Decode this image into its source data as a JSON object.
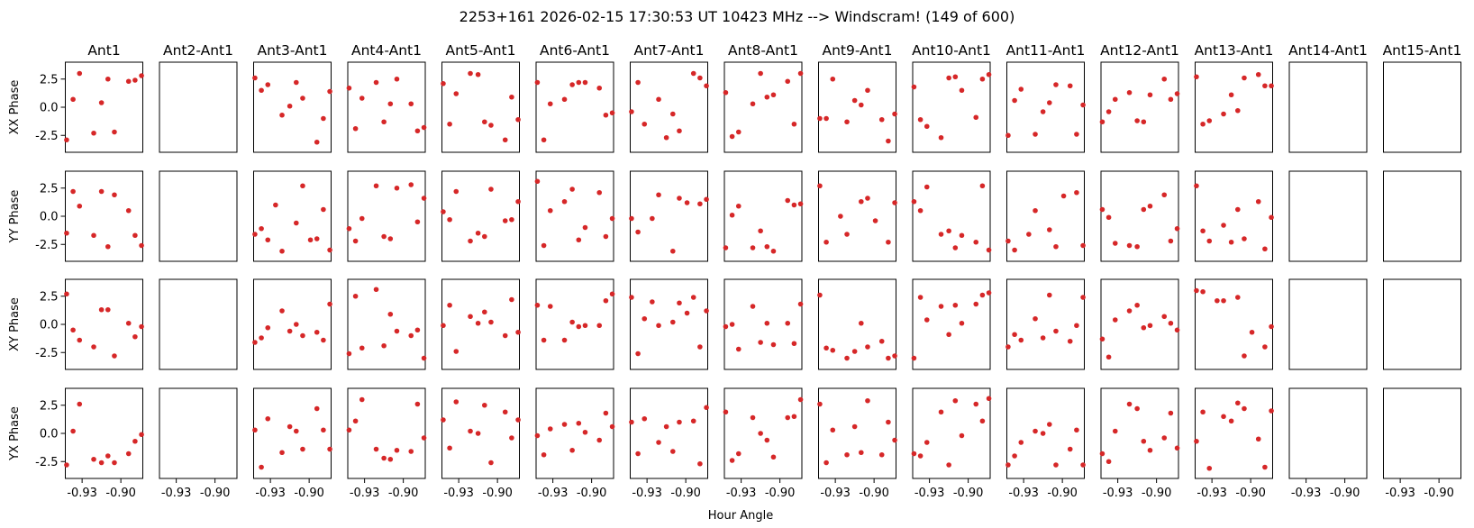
{
  "chart_data": {
    "type": "scatter",
    "title": "2253+161  2026-02-15 17:30:53 UT  10423 MHz  --> Windscram! (149 of 600)",
    "xlabel": "Hour Angle",
    "xlim": [
      -0.943,
      -0.883
    ],
    "ylim": [
      -4.0,
      4.0
    ],
    "x_ticks": [
      -0.93,
      -0.9
    ],
    "x_tick_labels": [
      "-0.93",
      "-0.90"
    ],
    "y_ticks": [
      2.5,
      0.0,
      -2.5
    ],
    "y_tick_labels": [
      "2.5",
      "0.0",
      "-2.5"
    ],
    "grid": false,
    "marker_color": "#d62728",
    "columns": [
      "Ant1",
      "Ant2-Ant1",
      "Ant3-Ant1",
      "Ant4-Ant1",
      "Ant5-Ant1",
      "Ant6-Ant1",
      "Ant7-Ant1",
      "Ant8-Ant1",
      "Ant9-Ant1",
      "Ant10-Ant1",
      "Ant11-Ant1",
      "Ant12-Ant1",
      "Ant13-Ant1",
      "Ant14-Ant1",
      "Ant15-Ant1"
    ],
    "rows": [
      "XX Phase",
      "YY Phase",
      "XY Phase",
      "YX Phase"
    ],
    "x": [
      -0.942,
      -0.937,
      -0.932,
      -0.926,
      -0.921,
      -0.915,
      -0.91,
      -0.905,
      -0.899,
      -0.894,
      -0.889,
      -0.884
    ],
    "phases": [
      [
        [
          -2.9,
          0.7,
          3.0,
          -2.3,
          0.4,
          2.5,
          -2.2,
          2.3,
          2.4,
          2.8
        ],
        [],
        [
          2.6,
          1.5,
          2.0,
          -0.7,
          0.1,
          2.2,
          0.8,
          -3.1,
          -1.0,
          1.4
        ],
        [
          1.7,
          -1.9,
          0.8,
          2.2,
          -1.3,
          0.3,
          2.5,
          0.3,
          -2.1,
          -1.8
        ],
        [
          2.1,
          -1.5,
          1.2,
          3.0,
          2.9,
          -1.3,
          -1.6,
          -2.9,
          0.9,
          -1.1
        ],
        [
          2.2,
          -2.9,
          0.3,
          0.7,
          2.0,
          2.2,
          2.2,
          1.7,
          -0.7,
          -0.5
        ],
        [
          -0.4,
          2.2,
          -1.5,
          0.7,
          -2.7,
          -0.6,
          -2.1,
          3.0,
          2.6,
          1.9
        ],
        [
          1.3,
          -2.6,
          -2.2,
          0.3,
          3.0,
          0.9,
          1.1,
          2.3,
          -1.5,
          3.0
        ],
        [
          -1.0,
          -1.0,
          2.5,
          -1.3,
          0.6,
          0.2,
          1.5,
          -1.1,
          -3.0,
          -0.6
        ],
        [
          1.8,
          -1.1,
          -1.7,
          -2.7,
          2.6,
          2.7,
          1.5,
          -0.9,
          2.5,
          2.9
        ],
        [
          -2.5,
          0.6,
          1.6,
          -2.4,
          -0.4,
          0.4,
          2.0,
          1.9,
          -2.4,
          0.2
        ],
        [
          -1.3,
          -0.4,
          0.7,
          1.3,
          -1.2,
          -1.3,
          1.1,
          2.5,
          0.7,
          1.2
        ],
        [
          2.7,
          -1.5,
          -1.2,
          -0.6,
          1.1,
          -0.3,
          2.6,
          2.9,
          1.9,
          1.9
        ],
        [],
        []
      ],
      [
        [
          -1.5,
          2.2,
          0.9,
          -1.7,
          2.2,
          -2.7,
          1.9,
          0.5,
          -1.7,
          -2.6
        ],
        [],
        [
          -1.6,
          -1.1,
          -2.1,
          1.0,
          -3.1,
          -0.6,
          2.7,
          -2.1,
          -2.0,
          0.6,
          -3.0
        ],
        [
          -1.1,
          -2.2,
          -0.2,
          2.7,
          -1.8,
          -2.0,
          2.5,
          2.8,
          -0.5,
          1.6
        ],
        [
          0.4,
          -0.3,
          2.2,
          -2.2,
          -1.5,
          -1.8,
          2.4,
          -0.4,
          -0.3,
          1.3
        ],
        [
          3.1,
          -2.6,
          0.5,
          1.3,
          2.4,
          -2.1,
          -1.0,
          2.1,
          -1.8,
          -0.2
        ],
        [
          -0.2,
          -1.4,
          -0.2,
          1.9,
          -3.1,
          1.6,
          1.2,
          1.1,
          1.5
        ],
        [
          -2.8,
          0.1,
          0.9,
          -2.8,
          -1.3,
          -2.7,
          -3.1,
          1.4,
          1.0,
          1.1
        ],
        [
          2.7,
          -2.3,
          0.0,
          -1.6,
          1.3,
          1.6,
          -0.4,
          -2.3,
          1.2
        ],
        [
          1.3,
          0.5,
          2.6,
          -1.6,
          -1.3,
          -2.8,
          -1.7,
          -2.3,
          2.7,
          -3.0
        ],
        [
          -2.2,
          -3.0,
          -1.6,
          0.5,
          -1.2,
          -2.7,
          1.8,
          2.1,
          -2.6
        ],
        [
          0.6,
          -0.1,
          -2.4,
          -2.6,
          -2.7,
          0.6,
          0.9,
          1.9,
          -2.2,
          -1.1
        ],
        [
          2.7,
          -1.3,
          -2.2,
          -0.8,
          -2.3,
          0.6,
          -2.0,
          1.3,
          -2.9,
          -0.1
        ],
        [],
        []
      ],
      [
        [
          2.7,
          -0.5,
          -1.4,
          -2.0,
          1.3,
          1.3,
          -2.8,
          0.1,
          -1.1,
          -0.2
        ],
        [],
        [
          -1.6,
          -1.2,
          -0.3,
          1.2,
          -0.6,
          0.0,
          -1.0,
          -0.7,
          -1.4,
          1.8
        ],
        [
          -2.6,
          2.5,
          -2.1,
          3.1,
          -1.9,
          0.9,
          -0.6,
          -1.0,
          -0.5,
          -3.0
        ],
        [
          -0.1,
          1.7,
          -2.4,
          0.7,
          0.1,
          1.1,
          0.2,
          -1.0,
          2.2,
          -0.7
        ],
        [
          1.7,
          -1.4,
          1.6,
          -1.4,
          0.2,
          -0.2,
          -0.1,
          -0.1,
          2.1,
          2.7
        ],
        [
          2.4,
          -2.6,
          0.5,
          2.0,
          -0.1,
          0.2,
          1.9,
          1.0,
          2.4,
          -2.0,
          1.2
        ],
        [
          -0.2,
          0.0,
          -2.2,
          1.6,
          -1.6,
          0.1,
          -1.8,
          0.1,
          -1.7,
          1.8
        ],
        [
          2.6,
          -2.1,
          -2.3,
          -3.0,
          -2.4,
          0.1,
          -2.0,
          -1.5,
          -3.0,
          -2.8
        ],
        [
          -3.0,
          2.4,
          0.4,
          1.6,
          -0.9,
          1.7,
          0.1,
          1.8,
          2.6,
          2.8
        ],
        [
          -2.0,
          -0.9,
          -1.4,
          0.5,
          -1.2,
          2.6,
          -0.6,
          -1.5,
          -0.1,
          2.4
        ],
        [
          -1.3,
          -2.9,
          0.4,
          1.2,
          1.7,
          -0.3,
          -0.1,
          0.7,
          0.1,
          -0.5
        ],
        [
          3.0,
          2.9,
          2.1,
          2.1,
          2.4,
          -2.8,
          -0.7,
          -2.0,
          -0.2
        ],
        [],
        []
      ],
      [
        [
          -2.8,
          0.2,
          2.6,
          -2.3,
          -2.6,
          -2.0,
          -2.6,
          -1.8,
          -0.7,
          -0.1
        ],
        [],
        [
          0.3,
          -3.0,
          1.3,
          -1.7,
          0.6,
          0.2,
          -1.4,
          2.2,
          0.3,
          -1.4
        ],
        [
          0.3,
          1.1,
          3.0,
          -1.4,
          -2.2,
          -2.3,
          -1.5,
          -1.6,
          2.6,
          -0.4
        ],
        [
          1.2,
          -1.3,
          2.8,
          0.2,
          0.0,
          2.5,
          -2.6,
          1.9,
          -0.4,
          1.2
        ],
        [
          -0.2,
          -1.9,
          0.4,
          0.8,
          -1.5,
          0.9,
          0.1,
          -0.6,
          1.8,
          0.6
        ],
        [
          1.0,
          -1.8,
          1.3,
          -0.8,
          0.6,
          -1.6,
          1.0,
          1.1,
          -2.7,
          2.3
        ],
        [
          1.9,
          -2.4,
          -1.8,
          1.4,
          0.0,
          -0.6,
          -2.1,
          1.4,
          1.5,
          3.0
        ],
        [
          2.6,
          -2.6,
          0.3,
          -1.9,
          0.6,
          -1.7,
          2.9,
          -1.9,
          1.0,
          -0.6
        ],
        [
          -1.8,
          -2.0,
          -0.8,
          1.9,
          -2.8,
          2.9,
          -0.2,
          2.6,
          1.1,
          3.1
        ],
        [
          -2.8,
          -2.0,
          -0.8,
          0.2,
          0.0,
          0.8,
          -2.8,
          -1.4,
          0.3,
          -2.8
        ],
        [
          -1.8,
          -2.5,
          0.2,
          2.6,
          2.2,
          -0.7,
          -1.5,
          -0.4,
          1.8,
          -1.3
        ],
        [
          -0.7,
          1.9,
          -3.1,
          1.5,
          1.1,
          2.7,
          2.2,
          -0.5,
          -3.0,
          2.0
        ],
        [],
        []
      ]
    ]
  }
}
